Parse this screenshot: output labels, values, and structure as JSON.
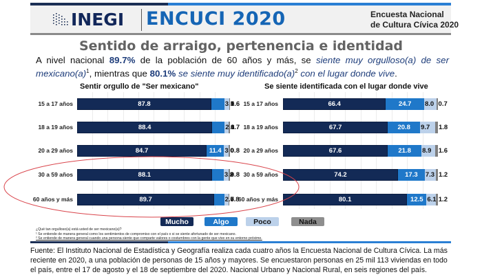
{
  "header": {
    "logo_text": "INEGI",
    "product": "ENCUCI 2020",
    "subtitle_line1": "Encuesta Nacional",
    "subtitle_line2": "de Cultura Cívica 2020",
    "colors": {
      "navy": "#1b2f55",
      "blue": "#2a7fd4",
      "gray_band": "#f1f1f1"
    }
  },
  "page_title": "Sentido de arraigo, pertenencia e identidad",
  "intro": {
    "p1": "A nivel nacional ",
    "v1": "89.7%",
    "p2": " de la población de 60 años y más, se ",
    "i1": "siente muy orgulloso(a) de ser mexicano(a)",
    "sup1": "1",
    "p3": ", mientras que ",
    "v2": "80.1%",
    "i2": " se siente muy identificado(a)",
    "sup2": "2",
    "i3": " con el lugar donde vive",
    "p4": "."
  },
  "chart_data": [
    {
      "type": "bar",
      "orientation": "horizontal-stacked-100",
      "title": "Sentir orgullo de \"Ser mexicano\"",
      "categories": [
        "15 a 17 años",
        "18 a 19 años",
        "20 a 29 años",
        "30 a 59 años",
        "60 años y más"
      ],
      "series": [
        {
          "name": "Mucho",
          "color": "#132a56",
          "values": [
            87.8,
            88.4,
            84.7,
            88.1,
            89.7
          ]
        },
        {
          "name": "Algo",
          "color": "#1f78c9",
          "values": [
            8.5,
            8.1,
            11.4,
            7.8,
            6.5
          ]
        },
        {
          "name": "Poco",
          "color": "#bcd1ea",
          "values": [
            3.1,
            2.8,
            3.0,
            3.2,
            2.7
          ]
        },
        {
          "name": "Nada",
          "color": "#7f7f7f",
          "values": [
            0.6,
            0.7,
            0.8,
            0.8,
            0.8
          ]
        }
      ],
      "xlim": [
        0,
        100
      ],
      "grid": true
    },
    {
      "type": "bar",
      "orientation": "horizontal-stacked-100",
      "title": "Se siente identificada con el lugar donde vive",
      "categories": [
        "15 a 17 años",
        "18 a 19 años",
        "20 a 29 años",
        "30 a 59 años",
        "60 años y más"
      ],
      "series": [
        {
          "name": "Mucho",
          "color": "#132a56",
          "values": [
            66.4,
            67.7,
            67.6,
            74.2,
            80.1
          ]
        },
        {
          "name": "Algo",
          "color": "#1f78c9",
          "values": [
            24.7,
            20.8,
            21.8,
            17.3,
            12.5
          ]
        },
        {
          "name": "Poco",
          "color": "#bcd1ea",
          "values": [
            8.0,
            9.7,
            8.9,
            7.3,
            6.1
          ]
        },
        {
          "name": "Nada",
          "color": "#7f7f7f",
          "values": [
            0.7,
            1.8,
            1.6,
            1.2,
            1.2
          ]
        }
      ],
      "xlim": [
        0,
        100
      ],
      "grid": true
    }
  ],
  "legend": [
    {
      "label": "Mucho"
    },
    {
      "label": "Algo"
    },
    {
      "label": "Poco"
    },
    {
      "label": "Nada"
    }
  ],
  "footnotes": {
    "question": "¿Qué tan orgulloso(a) está usted de ser mexicano(a)?",
    "note1": "¹ Se entiende de manera general como los sentimientos de compromiso con el país o si se siente afortunado de ser mexicano.",
    "note2": "² Se entiende de manera general cuando una persona siente que comparte valores o costumbres con la gente que vive en su entorno próximo."
  },
  "source": "Fuente: El Instituto Nacional de Estadística y Geografía realiza cada cuatro años la Encuesta Nacional de Cultura Cívica. La más reciente en 2020, a una población de personas de 15 años y mayores. Se encuestaron personas en 25 mil 113 viviendas en todo el país, entre el 17 de agosto y el 18 de septiembre del 2020. Nacional Urbano y Nacional Rural, en seis regiones del país.",
  "annotation": {
    "shape": "ellipse",
    "color": "#d9434a",
    "highlights": [
      "30 a 59 años",
      "60 años y más"
    ]
  }
}
